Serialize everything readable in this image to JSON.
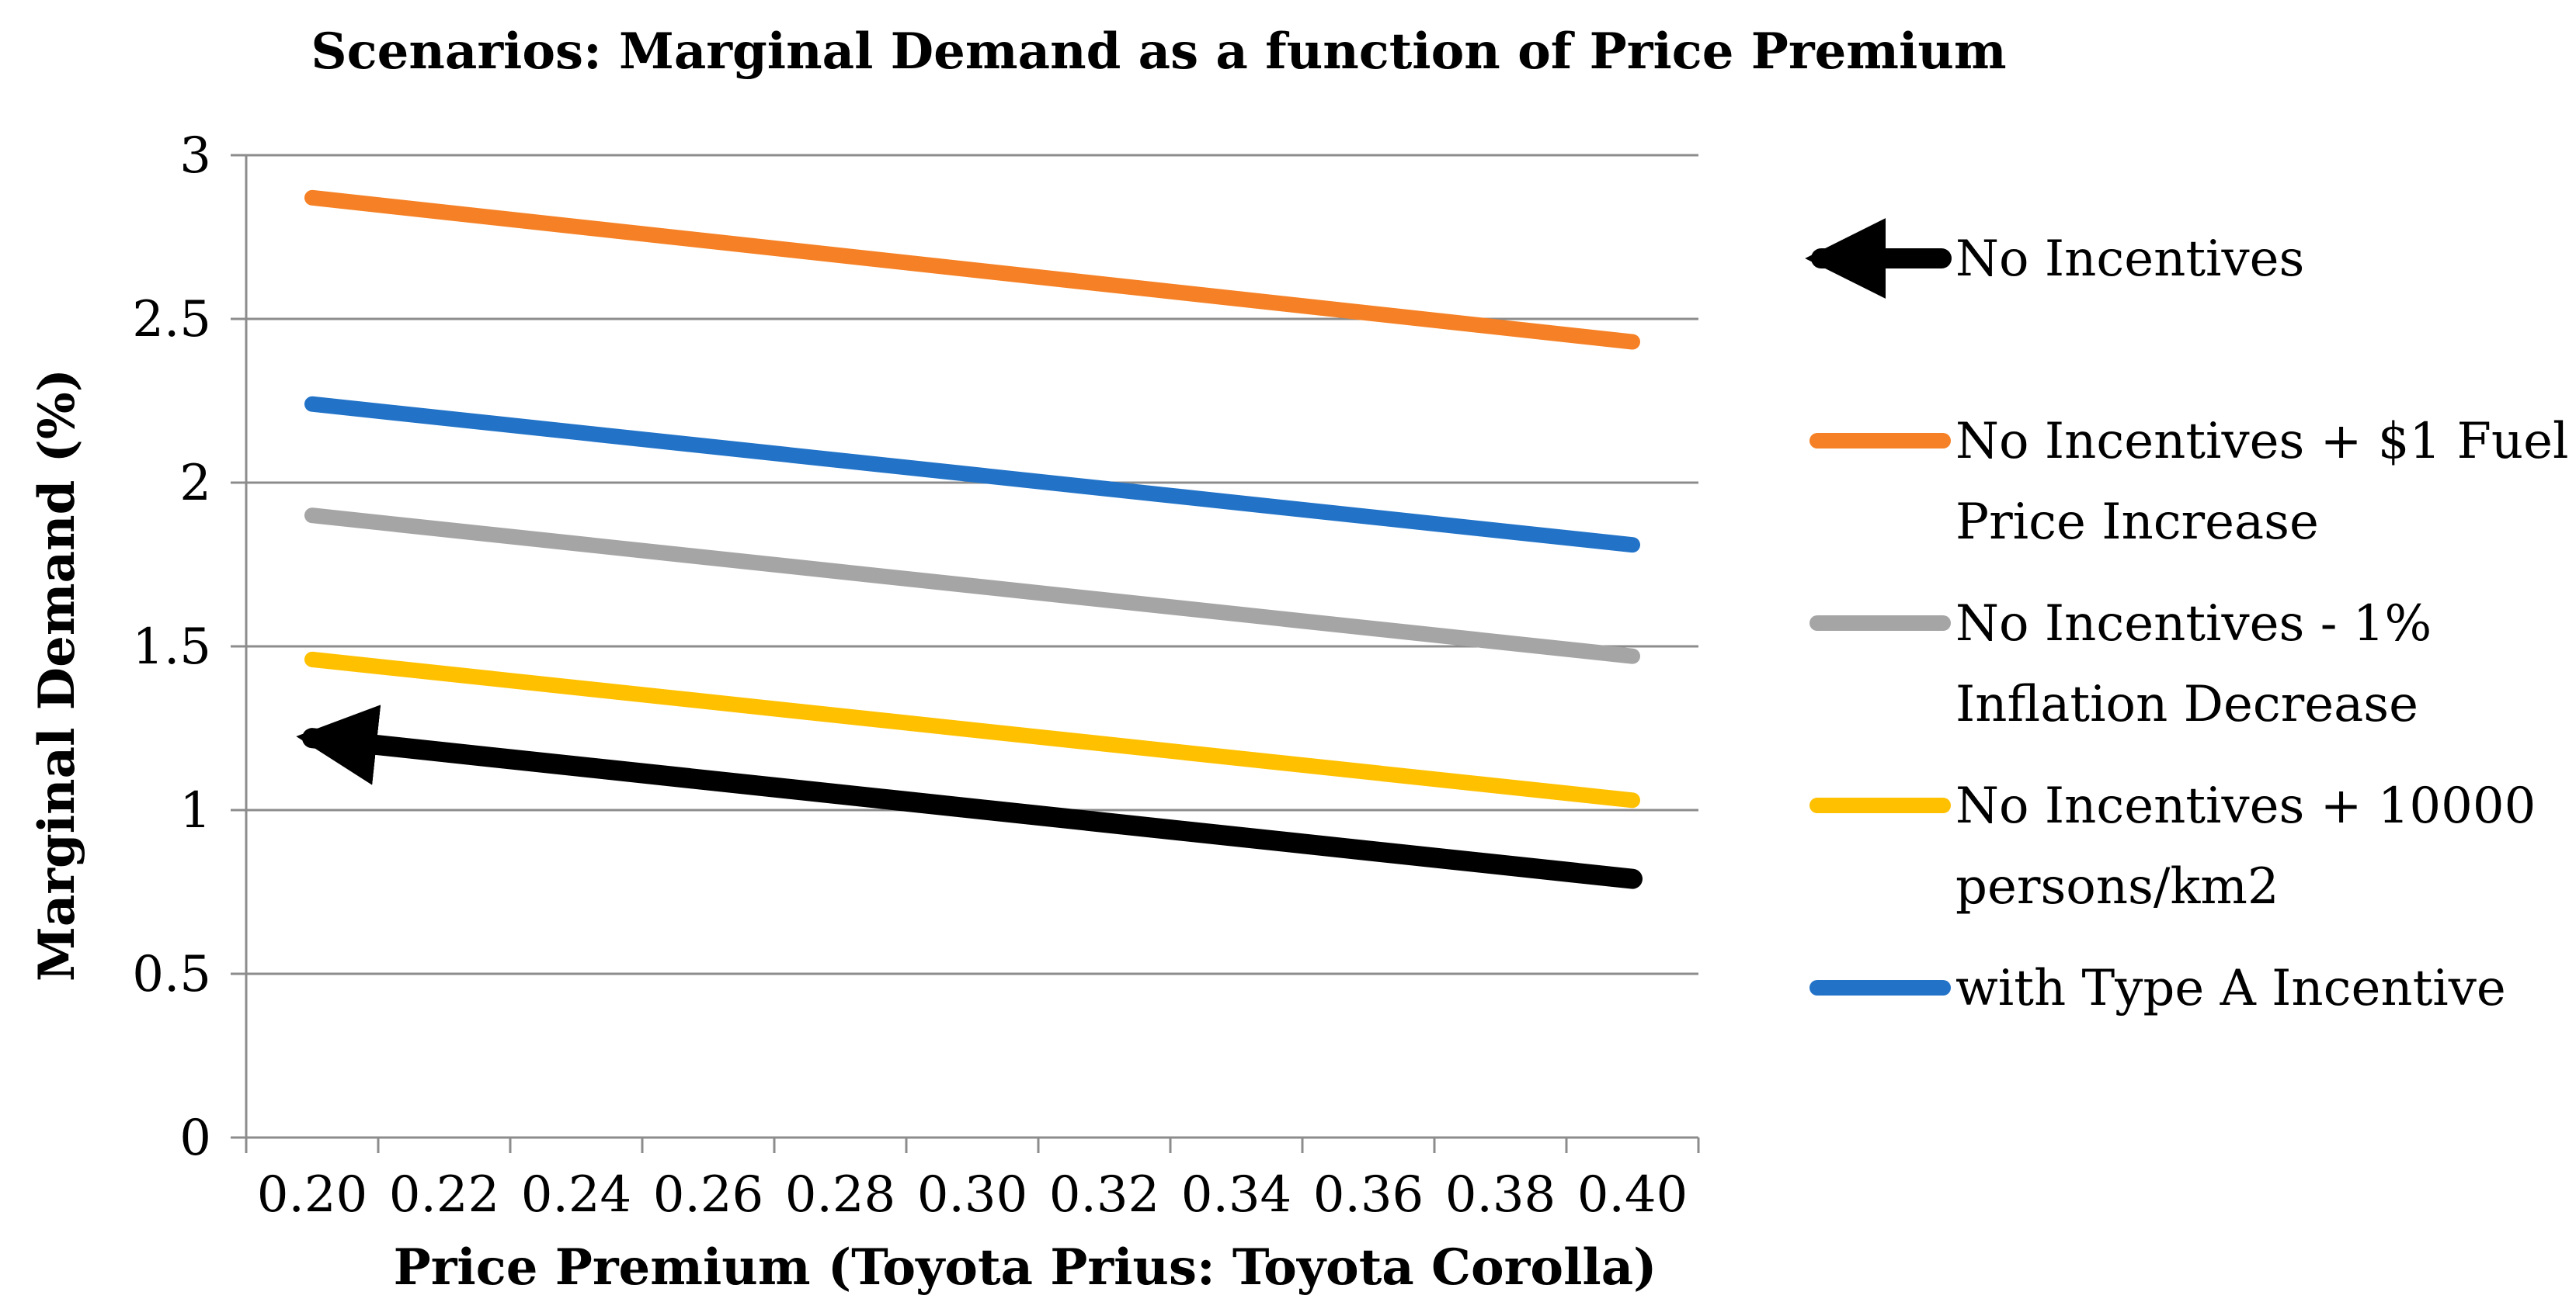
{
  "chart_data": {
    "type": "line",
    "title": "Scenarios: Marginal Demand as a function of Price Premium",
    "xlabel": "Price Premium (Toyota Prius: Toyota Corolla)",
    "ylabel": "Marginal Demand (%)",
    "x": [
      0.2,
      0.22,
      0.24,
      0.26,
      0.28,
      0.3,
      0.32,
      0.34,
      0.36,
      0.38,
      0.4
    ],
    "x_tick_labels": [
      "0.20",
      "0.22",
      "0.24",
      "0.26",
      "0.28",
      "0.30",
      "0.32",
      "0.34",
      "0.36",
      "0.38",
      "0.40"
    ],
    "xlim": [
      0.19,
      0.41
    ],
    "ylim": [
      0,
      3
    ],
    "y_ticks": [
      0,
      0.5,
      1,
      1.5,
      2,
      2.5,
      3
    ],
    "y_tick_labels": [
      "0",
      "0.5",
      "1",
      "1.5",
      "2",
      "2.5",
      "3"
    ],
    "grid": "horizontal",
    "legend_position": "right",
    "series": [
      {
        "name": "No Incentives",
        "legend_label": [
          "No Incentives"
        ],
        "color": "#000000",
        "style": "arrow",
        "x_start": 0.2,
        "y_start": 1.22,
        "x_end": 0.4,
        "y_end": 0.79
      },
      {
        "name": "No Incentives + $1 Fuel Price Increase",
        "legend_label": [
          "No Incentives + $1 Fuel",
          "Price Increase"
        ],
        "color": "#F58025",
        "style": "line",
        "x_start": 0.2,
        "y_start": 2.87,
        "x_end": 0.4,
        "y_end": 2.43
      },
      {
        "name": "No Incentives - 1% Inflation Decrease",
        "legend_label": [
          "No Incentives - 1%",
          "Inflation Decrease"
        ],
        "color": "#A5A5A5",
        "style": "line",
        "x_start": 0.2,
        "y_start": 1.9,
        "x_end": 0.4,
        "y_end": 1.47
      },
      {
        "name": "No Incentives + 10000 persons/km2",
        "legend_label": [
          "No Incentives + 10000",
          "persons/km2"
        ],
        "color": "#FFC000",
        "style": "line",
        "x_start": 0.2,
        "y_start": 1.46,
        "x_end": 0.4,
        "y_end": 1.03
      },
      {
        "name": "with Type A Incentive",
        "legend_label": [
          "with Type A Incentive"
        ],
        "color": "#2273C8",
        "style": "line",
        "x_start": 0.2,
        "y_start": 2.24,
        "x_end": 0.4,
        "y_end": 1.81
      }
    ]
  }
}
